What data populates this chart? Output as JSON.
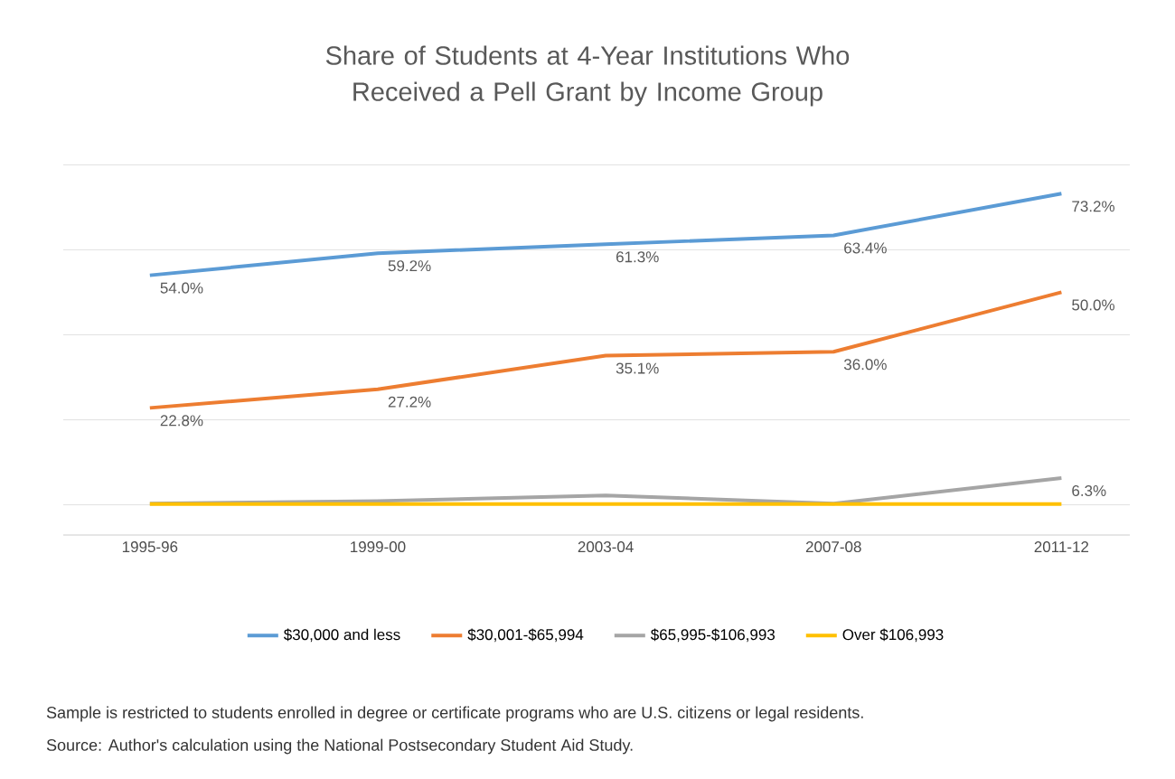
{
  "chart_data": {
    "type": "line",
    "title": "Share of Students at 4-Year Institutions Who Received a Pell Grant by Income Group",
    "categories": [
      "1995-96",
      "1999-00",
      "2003-04",
      "2007-08",
      "2011-12"
    ],
    "series": [
      {
        "name": "$30,000 and less",
        "color": "#5b9bd5",
        "values": [
          54.0,
          59.2,
          61.3,
          63.4,
          73.2
        ],
        "value_labels": [
          "54.0%",
          "59.2%",
          "61.3%",
          "63.4%",
          "73.2%"
        ]
      },
      {
        "name": "$30,001-$65,994",
        "color": "#ed7d31",
        "values": [
          22.8,
          27.2,
          35.1,
          36.0,
          50.0
        ],
        "value_labels": [
          "22.8%",
          "27.2%",
          "35.1%",
          "36.0%",
          "50.0%"
        ]
      },
      {
        "name": "$65,995-$106,993",
        "color": "#a5a5a5",
        "values": [
          0.3,
          0.9,
          2.2,
          0.3,
          6.3
        ],
        "value_labels": [
          null,
          null,
          null,
          null,
          "6.3%"
        ]
      },
      {
        "name": "Over $106,993",
        "color": "#ffc000",
        "values": [
          0.2,
          0.2,
          0.2,
          0.2,
          0.2
        ],
        "value_labels": [
          null,
          null,
          null,
          null,
          null
        ]
      }
    ],
    "tick_labels": "x",
    "grid": "y",
    "legend": "bottom",
    "marker": "none",
    "line_style": "solid",
    "annotations": [
      "Sample is restricted to students enrolled in degree  or certificate programs who are U.S. citizens or legal residents.",
      "Source: Author's calculation using the National Postsecondary Student Aid Study."
    ]
  }
}
